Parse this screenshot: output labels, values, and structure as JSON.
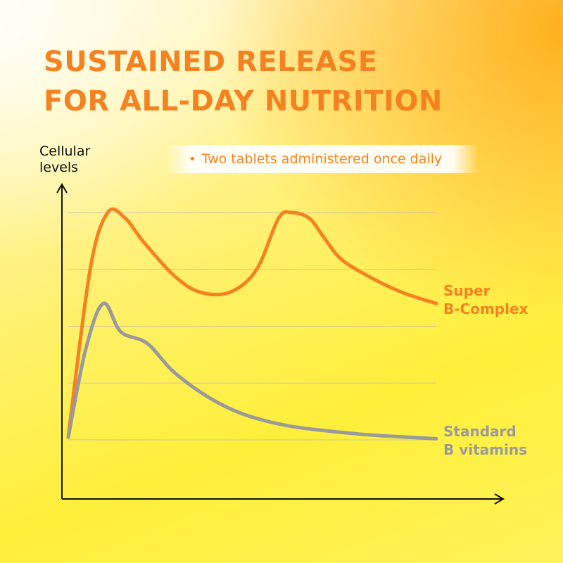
{
  "title": {
    "line1": "SUSTAINED RELEASE",
    "line2": "FOR ALL-DAY NUTRITION"
  },
  "y_axis_label": {
    "line1": "Cellular",
    "line2": "levels"
  },
  "note": {
    "bullet": "•",
    "text": "Two tablets administered once daily"
  },
  "colors": {
    "super": "#f58220",
    "standard": "#9a9a9a",
    "gridline": "#c8c3a8",
    "axis": "#111111"
  },
  "chart_data": {
    "type": "line",
    "xlabel": "",
    "ylabel": "Cellular levels",
    "grid": true,
    "series": [
      {
        "name": "Super B-Complex",
        "label_lines": [
          "Super",
          "B-Complex"
        ],
        "x": [
          0,
          2.5,
          4.5,
          6.5,
          8.5,
          12,
          15,
          18.5,
          21.5,
          24,
          25.5,
          27.5,
          29,
          31,
          34,
          38,
          42
        ],
        "y": [
          0.05,
          3.0,
          4.0,
          3.9,
          3.5,
          2.9,
          2.6,
          2.6,
          3.0,
          3.9,
          4.0,
          3.9,
          3.6,
          3.2,
          2.9,
          2.6,
          2.4
        ]
      },
      {
        "name": "Standard B vitamins",
        "label_lines": [
          "Standard",
          "B vitamins"
        ],
        "x": [
          0,
          2,
          4,
          6,
          9,
          12,
          16,
          20,
          25,
          30,
          35,
          42
        ],
        "y": [
          0.05,
          1.6,
          2.4,
          1.9,
          1.7,
          1.2,
          0.75,
          0.45,
          0.25,
          0.15,
          0.08,
          0.02
        ]
      }
    ]
  }
}
